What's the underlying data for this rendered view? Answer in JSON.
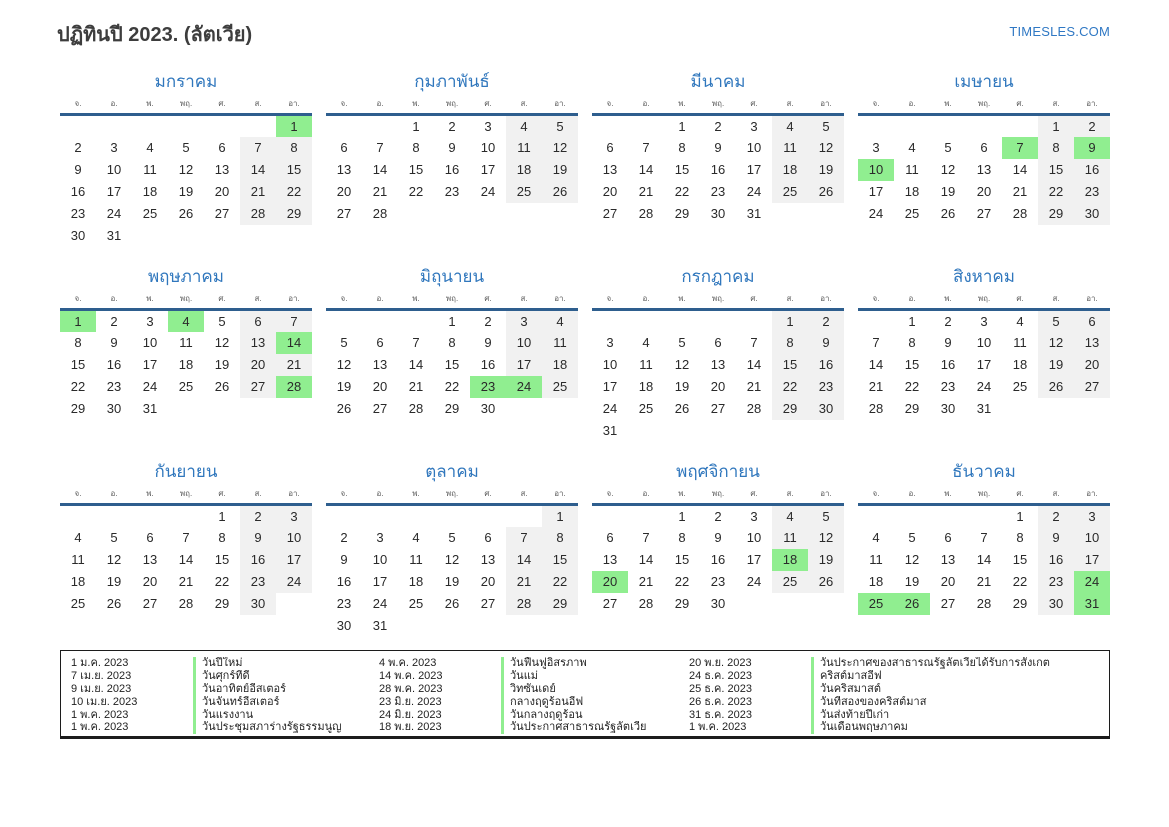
{
  "page": {
    "title": "ปฏิทินปี 2023. (ลัตเวีย)",
    "brand": "TIMESLES.COM"
  },
  "colors": {
    "month_title_blue": "#3077bd",
    "header_line_navy": "#2e5e8e",
    "holiday_green": "#90ee90",
    "weekend_gray": "#f1f1f1",
    "brand_blue": "#2f78c4"
  },
  "weekday_headers": [
    "จ.",
    "อ.",
    "พ.",
    "พฤ.",
    "ศ.",
    "ส.",
    "อา."
  ],
  "months": [
    {
      "name": "มกราคม",
      "weeks": [
        [
          null,
          null,
          null,
          null,
          null,
          null,
          1
        ],
        [
          2,
          3,
          4,
          5,
          6,
          7,
          8
        ],
        [
          9,
          10,
          11,
          12,
          13,
          14,
          15
        ],
        [
          16,
          17,
          18,
          19,
          20,
          21,
          22
        ],
        [
          23,
          24,
          25,
          26,
          27,
          28,
          29
        ],
        [
          30,
          31,
          null,
          null,
          null,
          null,
          null
        ]
      ],
      "highlights": [
        1
      ]
    },
    {
      "name": "กุมภาพันธ์",
      "weeks": [
        [
          null,
          null,
          1,
          2,
          3,
          4,
          5
        ],
        [
          6,
          7,
          8,
          9,
          10,
          11,
          12
        ],
        [
          13,
          14,
          15,
          16,
          17,
          18,
          19
        ],
        [
          20,
          21,
          22,
          23,
          24,
          25,
          26
        ],
        [
          27,
          28,
          null,
          null,
          null,
          null,
          null
        ]
      ],
      "highlights": []
    },
    {
      "name": "มีนาคม",
      "weeks": [
        [
          null,
          null,
          1,
          2,
          3,
          4,
          5
        ],
        [
          6,
          7,
          8,
          9,
          10,
          11,
          12
        ],
        [
          13,
          14,
          15,
          16,
          17,
          18,
          19
        ],
        [
          20,
          21,
          22,
          23,
          24,
          25,
          26
        ],
        [
          27,
          28,
          29,
          30,
          31,
          null,
          null
        ]
      ],
      "highlights": []
    },
    {
      "name": "เมษายน",
      "weeks": [
        [
          null,
          null,
          null,
          null,
          null,
          1,
          2
        ],
        [
          3,
          4,
          5,
          6,
          7,
          8,
          9
        ],
        [
          10,
          11,
          12,
          13,
          14,
          15,
          16
        ],
        [
          17,
          18,
          19,
          20,
          21,
          22,
          23
        ],
        [
          24,
          25,
          26,
          27,
          28,
          29,
          30
        ]
      ],
      "highlights": [
        7,
        9,
        10
      ]
    },
    {
      "name": "พฤษภาคม",
      "weeks": [
        [
          1,
          2,
          3,
          4,
          5,
          6,
          7
        ],
        [
          8,
          9,
          10,
          11,
          12,
          13,
          14
        ],
        [
          15,
          16,
          17,
          18,
          19,
          20,
          21
        ],
        [
          22,
          23,
          24,
          25,
          26,
          27,
          28
        ],
        [
          29,
          30,
          31,
          null,
          null,
          null,
          null
        ]
      ],
      "highlights": [
        1,
        4,
        14,
        28
      ]
    },
    {
      "name": "มิถุนายน",
      "weeks": [
        [
          null,
          null,
          null,
          1,
          2,
          3,
          4
        ],
        [
          5,
          6,
          7,
          8,
          9,
          10,
          11
        ],
        [
          12,
          13,
          14,
          15,
          16,
          17,
          18
        ],
        [
          19,
          20,
          21,
          22,
          23,
          24,
          25
        ],
        [
          26,
          27,
          28,
          29,
          30,
          null,
          null
        ]
      ],
      "highlights": [
        23,
        24
      ]
    },
    {
      "name": "กรกฎาคม",
      "weeks": [
        [
          null,
          null,
          null,
          null,
          null,
          1,
          2
        ],
        [
          3,
          4,
          5,
          6,
          7,
          8,
          9
        ],
        [
          10,
          11,
          12,
          13,
          14,
          15,
          16
        ],
        [
          17,
          18,
          19,
          20,
          21,
          22,
          23
        ],
        [
          24,
          25,
          26,
          27,
          28,
          29,
          30
        ],
        [
          31,
          null,
          null,
          null,
          null,
          null,
          null
        ]
      ],
      "highlights": []
    },
    {
      "name": "สิงหาคม",
      "weeks": [
        [
          null,
          1,
          2,
          3,
          4,
          5,
          6
        ],
        [
          7,
          8,
          9,
          10,
          11,
          12,
          13
        ],
        [
          14,
          15,
          16,
          17,
          18,
          19,
          20
        ],
        [
          21,
          22,
          23,
          24,
          25,
          26,
          27
        ],
        [
          28,
          29,
          30,
          31,
          null,
          null,
          null
        ]
      ],
      "highlights": []
    },
    {
      "name": "กันยายน",
      "weeks": [
        [
          null,
          null,
          null,
          null,
          1,
          2,
          3
        ],
        [
          4,
          5,
          6,
          7,
          8,
          9,
          10
        ],
        [
          11,
          12,
          13,
          14,
          15,
          16,
          17
        ],
        [
          18,
          19,
          20,
          21,
          22,
          23,
          24
        ],
        [
          25,
          26,
          27,
          28,
          29,
          30,
          null
        ]
      ],
      "highlights": []
    },
    {
      "name": "ตุลาคม",
      "weeks": [
        [
          null,
          null,
          null,
          null,
          null,
          null,
          1
        ],
        [
          2,
          3,
          4,
          5,
          6,
          7,
          8
        ],
        [
          9,
          10,
          11,
          12,
          13,
          14,
          15
        ],
        [
          16,
          17,
          18,
          19,
          20,
          21,
          22
        ],
        [
          23,
          24,
          25,
          26,
          27,
          28,
          29
        ],
        [
          30,
          31,
          null,
          null,
          null,
          null,
          null
        ]
      ],
      "highlights": []
    },
    {
      "name": "พฤศจิกายน",
      "weeks": [
        [
          null,
          null,
          1,
          2,
          3,
          4,
          5
        ],
        [
          6,
          7,
          8,
          9,
          10,
          11,
          12
        ],
        [
          13,
          14,
          15,
          16,
          17,
          18,
          19
        ],
        [
          20,
          21,
          22,
          23,
          24,
          25,
          26
        ],
        [
          27,
          28,
          29,
          30,
          null,
          null,
          null
        ]
      ],
      "highlights": [
        18,
        20
      ]
    },
    {
      "name": "ธันวาคม",
      "weeks": [
        [
          null,
          null,
          null,
          null,
          1,
          2,
          3
        ],
        [
          4,
          5,
          6,
          7,
          8,
          9,
          10
        ],
        [
          11,
          12,
          13,
          14,
          15,
          16,
          17
        ],
        [
          18,
          19,
          20,
          21,
          22,
          23,
          24
        ],
        [
          25,
          26,
          27,
          28,
          29,
          30,
          31
        ]
      ],
      "highlights": [
        24,
        25,
        26,
        31
      ]
    }
  ],
  "holidays": {
    "columns": [
      {
        "items": [
          {
            "date": "1 ม.ค. 2023",
            "name": "วันปีใหม่"
          },
          {
            "date": "7 เม.ย. 2023",
            "name": "วันศุกร์ที่ดี"
          },
          {
            "date": "9 เม.ย. 2023",
            "name": "วันอาทิตย์อีสเตอร์"
          },
          {
            "date": "10 เม.ย. 2023",
            "name": "วันจันทร์อีสเตอร์"
          },
          {
            "date": "1 พ.ค. 2023",
            "name": "วันแรงงาน"
          },
          {
            "date": "1 พ.ค. 2023",
            "name": "วันประชุมสภาร่างรัฐธรรมนูญ"
          }
        ]
      },
      {
        "items": [
          {
            "date": "4 พ.ค. 2023",
            "name": "วันฟื้นฟูอิสรภาพ"
          },
          {
            "date": "14 พ.ค. 2023",
            "name": "วันแม่"
          },
          {
            "date": "28 พ.ค. 2023",
            "name": "วิทซันเดย์"
          },
          {
            "date": "23 มิ.ย. 2023",
            "name": "กลางฤดูร้อนอีฟ"
          },
          {
            "date": "24 มิ.ย. 2023",
            "name": "วันกลางฤดูร้อน"
          },
          {
            "date": "18 พ.ย. 2023",
            "name": "วันประกาศสาธารณรัฐลัตเวีย"
          }
        ]
      },
      {
        "items": [
          {
            "date": "20 พ.ย. 2023",
            "name": "วันประกาศของสาธารณรัฐลัตเวียได้รับการสังเกต"
          },
          {
            "date": "24 ธ.ค. 2023",
            "name": "คริสต์มาสอีฟ"
          },
          {
            "date": "25 ธ.ค. 2023",
            "name": "วันคริสมาสต์"
          },
          {
            "date": "26 ธ.ค. 2023",
            "name": "วันที่สองของคริสต์มาส"
          },
          {
            "date": "31 ธ.ค. 2023",
            "name": "วันส่งท้ายปีเก่า"
          },
          {
            "date": "1 พ.ค. 2023",
            "name": "วันเดือนพฤษภาคม"
          }
        ]
      }
    ]
  }
}
